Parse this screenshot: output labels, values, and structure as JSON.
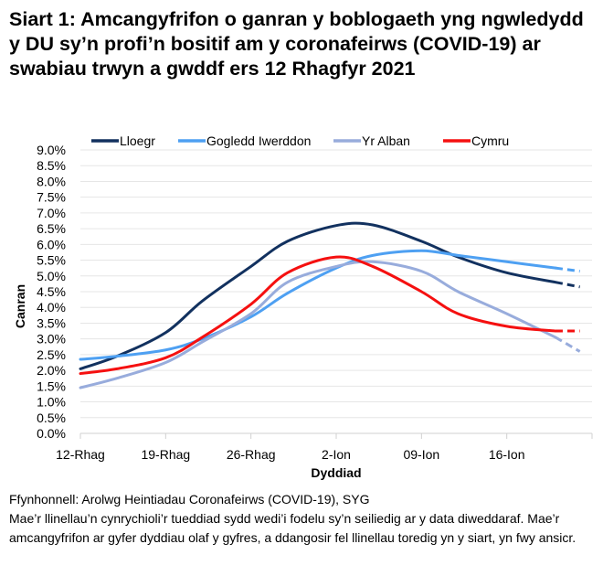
{
  "chart_data": {
    "type": "line",
    "title": "Siart 1: Amcangyfrifon o ganran y boblogaeth yng ngwledydd y DU sy’n profi’n bositif am y coronafeirws (COVID-19) ar swabiau trwyn a gwddf ers 12 Rhagfyr 2021",
    "xlabel": "Dyddiad",
    "ylabel": "Canran",
    "ylim": [
      0,
      9
    ],
    "ytick_step": 0.5,
    "ytick_labels": [
      "0.0%",
      "0.5%",
      "1.0%",
      "1.5%",
      "2.0%",
      "2.5%",
      "3.0%",
      "3.5%",
      "4.0%",
      "4.5%",
      "5.0%",
      "5.5%",
      "6.0%",
      "6.5%",
      "7.0%",
      "7.5%",
      "8.0%",
      "8.5%",
      "9.0%"
    ],
    "xlim": [
      "2021-12-12",
      "2022-01-23"
    ],
    "xticks": [
      {
        "date": "2021-12-12",
        "label": "12-Rhag"
      },
      {
        "date": "2021-12-19",
        "label": "19-Rhag"
      },
      {
        "date": "2021-12-26",
        "label": "26-Rhag"
      },
      {
        "date": "2022-01-02",
        "label": "2-Ion"
      },
      {
        "date": "2022-01-09",
        "label": "09-Ion"
      },
      {
        "date": "2022-01-16",
        "label": "16-Ion"
      }
    ],
    "grid": true,
    "legend_placement": "top",
    "estimate_from": "2022-01-20",
    "x": [
      "2021-12-12",
      "2021-12-15",
      "2021-12-19",
      "2021-12-22",
      "2021-12-26",
      "2021-12-29",
      "2022-01-02",
      "2022-01-05",
      "2022-01-09",
      "2022-01-12",
      "2022-01-16",
      "2022-01-20",
      "2022-01-22"
    ],
    "series": [
      {
        "name": "Lloegr",
        "color": "#12315f",
        "values": [
          2.05,
          2.45,
          3.2,
          4.2,
          5.3,
          6.1,
          6.6,
          6.62,
          6.1,
          5.6,
          5.1,
          4.8,
          4.65
        ]
      },
      {
        "name": "Gogledd Iwerddon",
        "color": "#4ea0f2",
        "values": [
          2.35,
          2.45,
          2.65,
          3.0,
          3.7,
          4.45,
          5.25,
          5.65,
          5.8,
          5.65,
          5.45,
          5.25,
          5.15
        ]
      },
      {
        "name": "Yr Alban",
        "color": "#98acdc",
        "values": [
          1.45,
          1.75,
          2.25,
          2.9,
          3.8,
          4.8,
          5.3,
          5.45,
          5.15,
          4.5,
          3.8,
          3.05,
          2.6
        ]
      },
      {
        "name": "Cymru",
        "color": "#f51010",
        "values": [
          1.9,
          2.05,
          2.4,
          3.05,
          4.1,
          5.1,
          5.6,
          5.3,
          4.5,
          3.8,
          3.4,
          3.25,
          3.25
        ]
      }
    ]
  },
  "notes": {
    "source": "Ffynhonnell: Arolwg Heintiadau Coronafeirws (COVID-19), SYG",
    "footnote": "Mae’r llinellau’n cynrychioli’r tueddiad sydd wedi’i fodelu sy’n seiliedig ar y data diweddaraf. Mae’r amcangyfrifon ar gyfer dyddiau olaf y gyfres, a ddangosir fel llinellau toredig yn y siart, yn fwy ansicr."
  }
}
